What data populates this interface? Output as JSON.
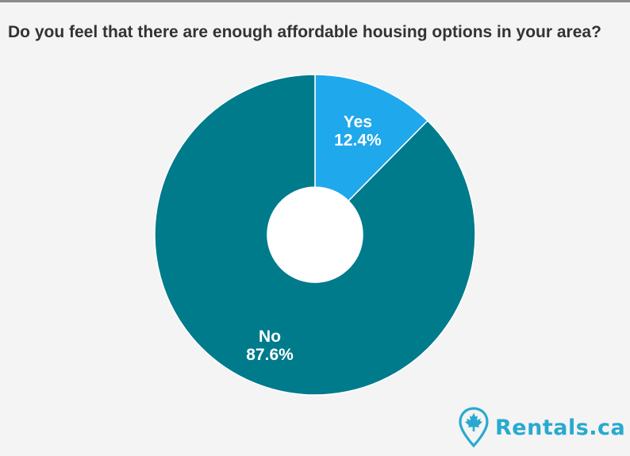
{
  "title": "Do you feel that there are enough affordable housing options in your area?",
  "chart_data": {
    "type": "pie",
    "style": "donut",
    "categories": [
      "Yes",
      "No"
    ],
    "values": [
      12.4,
      87.6
    ],
    "value_labels": [
      "12.4%",
      "87.6%"
    ],
    "colors": [
      "#1fa8ec",
      "#007b8c"
    ],
    "legend": "none"
  },
  "brand": {
    "name": "Rentals.ca",
    "icon": "maple-leaf-pin-icon",
    "color": "#29a9cf"
  },
  "colors": {
    "background": "#f4f4f4",
    "title": "#333333"
  }
}
